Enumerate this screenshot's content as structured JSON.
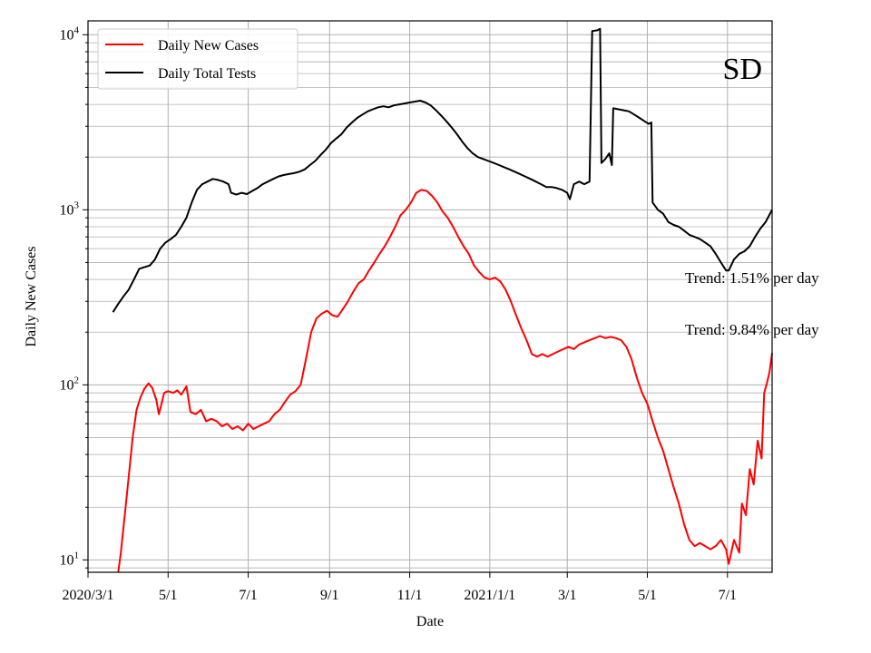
{
  "chart_data": {
    "type": "line",
    "state_label": "SD",
    "xlabel": "Date",
    "ylabel": "Daily New Cases",
    "y_scale": "log",
    "ylim": [
      8.5,
      12000
    ],
    "xlim": [
      "2020-03-01",
      "2021-08-04"
    ],
    "grid": true,
    "legend_position": "top-left",
    "x_ticks": [
      {
        "date": "2020-03-01",
        "label": "2020/3/1"
      },
      {
        "date": "2020-05-01",
        "label": "5/1"
      },
      {
        "date": "2020-07-01",
        "label": "7/1"
      },
      {
        "date": "2020-09-01",
        "label": "9/1"
      },
      {
        "date": "2020-11-01",
        "label": "11/1"
      },
      {
        "date": "2021-01-01",
        "label": "2021/1/1"
      },
      {
        "date": "2021-03-01",
        "label": "3/1"
      },
      {
        "date": "2021-05-01",
        "label": "5/1"
      },
      {
        "date": "2021-07-01",
        "label": "7/1"
      }
    ],
    "y_ticks": [
      {
        "value": 10,
        "base": "10",
        "exp": "1"
      },
      {
        "value": 100,
        "base": "10",
        "exp": "2"
      },
      {
        "value": 1000,
        "base": "10",
        "exp": "3"
      },
      {
        "value": 10000,
        "base": "10",
        "exp": "4"
      }
    ],
    "annotations": [
      "Trend: 1.51% per day",
      "Trend: 9.84% per day"
    ],
    "series": [
      {
        "name": "Daily New Cases",
        "color": "#ff0000",
        "points": [
          [
            "2020-03-24",
            8.5
          ],
          [
            "2020-03-26",
            11
          ],
          [
            "2020-03-29",
            18
          ],
          [
            "2020-04-01",
            30
          ],
          [
            "2020-04-04",
            50
          ],
          [
            "2020-04-07",
            72
          ],
          [
            "2020-04-10",
            85
          ],
          [
            "2020-04-13",
            95
          ],
          [
            "2020-04-16",
            102
          ],
          [
            "2020-04-19",
            96
          ],
          [
            "2020-04-22",
            82
          ],
          [
            "2020-04-24",
            68
          ],
          [
            "2020-04-26",
            78
          ],
          [
            "2020-04-28",
            90
          ],
          [
            "2020-05-01",
            92
          ],
          [
            "2020-05-05",
            90
          ],
          [
            "2020-05-08",
            93
          ],
          [
            "2020-05-11",
            88
          ],
          [
            "2020-05-15",
            98
          ],
          [
            "2020-05-18",
            70
          ],
          [
            "2020-05-22",
            68
          ],
          [
            "2020-05-26",
            72
          ],
          [
            "2020-05-30",
            62
          ],
          [
            "2020-06-03",
            64
          ],
          [
            "2020-06-07",
            62
          ],
          [
            "2020-06-11",
            58
          ],
          [
            "2020-06-15",
            60
          ],
          [
            "2020-06-19",
            56
          ],
          [
            "2020-06-23",
            58
          ],
          [
            "2020-06-27",
            55
          ],
          [
            "2020-07-01",
            60
          ],
          [
            "2020-07-05",
            56
          ],
          [
            "2020-07-09",
            58
          ],
          [
            "2020-07-13",
            60
          ],
          [
            "2020-07-17",
            62
          ],
          [
            "2020-07-21",
            68
          ],
          [
            "2020-07-25",
            72
          ],
          [
            "2020-07-29",
            80
          ],
          [
            "2020-08-02",
            88
          ],
          [
            "2020-08-06",
            92
          ],
          [
            "2020-08-10",
            100
          ],
          [
            "2020-08-14",
            140
          ],
          [
            "2020-08-18",
            200
          ],
          [
            "2020-08-22",
            240
          ],
          [
            "2020-08-26",
            255
          ],
          [
            "2020-08-30",
            265
          ],
          [
            "2020-09-03",
            250
          ],
          [
            "2020-09-07",
            245
          ],
          [
            "2020-09-11",
            270
          ],
          [
            "2020-09-15",
            300
          ],
          [
            "2020-09-19",
            340
          ],
          [
            "2020-09-23",
            380
          ],
          [
            "2020-09-27",
            400
          ],
          [
            "2020-10-01",
            450
          ],
          [
            "2020-10-05",
            500
          ],
          [
            "2020-10-09",
            560
          ],
          [
            "2020-10-13",
            620
          ],
          [
            "2020-10-17",
            700
          ],
          [
            "2020-10-21",
            800
          ],
          [
            "2020-10-25",
            930
          ],
          [
            "2020-10-29",
            1000
          ],
          [
            "2020-11-02",
            1100
          ],
          [
            "2020-11-06",
            1250
          ],
          [
            "2020-11-10",
            1300
          ],
          [
            "2020-11-14",
            1280
          ],
          [
            "2020-11-18",
            1200
          ],
          [
            "2020-11-22",
            1100
          ],
          [
            "2020-11-26",
            980
          ],
          [
            "2020-11-30",
            900
          ],
          [
            "2020-12-04",
            800
          ],
          [
            "2020-12-08",
            700
          ],
          [
            "2020-12-12",
            620
          ],
          [
            "2020-12-16",
            560
          ],
          [
            "2020-12-20",
            480
          ],
          [
            "2020-12-24",
            440
          ],
          [
            "2020-12-28",
            410
          ],
          [
            "2021-01-01",
            400
          ],
          [
            "2021-01-05",
            410
          ],
          [
            "2021-01-09",
            390
          ],
          [
            "2021-01-13",
            350
          ],
          [
            "2021-01-17",
            300
          ],
          [
            "2021-01-21",
            250
          ],
          [
            "2021-01-25",
            210
          ],
          [
            "2021-01-29",
            180
          ],
          [
            "2021-02-02",
            150
          ],
          [
            "2021-02-06",
            145
          ],
          [
            "2021-02-10",
            150
          ],
          [
            "2021-02-14",
            145
          ],
          [
            "2021-02-18",
            150
          ],
          [
            "2021-02-22",
            155
          ],
          [
            "2021-02-26",
            160
          ],
          [
            "2021-03-02",
            165
          ],
          [
            "2021-03-06",
            160
          ],
          [
            "2021-03-10",
            170
          ],
          [
            "2021-03-14",
            175
          ],
          [
            "2021-03-18",
            180
          ],
          [
            "2021-03-22",
            185
          ],
          [
            "2021-03-26",
            190
          ],
          [
            "2021-03-30",
            185
          ],
          [
            "2021-04-03",
            188
          ],
          [
            "2021-04-07",
            185
          ],
          [
            "2021-04-11",
            180
          ],
          [
            "2021-04-15",
            165
          ],
          [
            "2021-04-19",
            140
          ],
          [
            "2021-04-23",
            110
          ],
          [
            "2021-04-27",
            90
          ],
          [
            "2021-05-01",
            78
          ],
          [
            "2021-05-05",
            62
          ],
          [
            "2021-05-09",
            50
          ],
          [
            "2021-05-13",
            42
          ],
          [
            "2021-05-17",
            33
          ],
          [
            "2021-05-21",
            26
          ],
          [
            "2021-05-25",
            21
          ],
          [
            "2021-05-29",
            16
          ],
          [
            "2021-06-02",
            13
          ],
          [
            "2021-06-06",
            12
          ],
          [
            "2021-06-10",
            12.5
          ],
          [
            "2021-06-14",
            12
          ],
          [
            "2021-06-18",
            11.5
          ],
          [
            "2021-06-22",
            12
          ],
          [
            "2021-06-26",
            13
          ],
          [
            "2021-06-30",
            11.5
          ],
          [
            "2021-07-02",
            9.5
          ],
          [
            "2021-07-06",
            13
          ],
          [
            "2021-07-10",
            11
          ],
          [
            "2021-07-12",
            21
          ],
          [
            "2021-07-15",
            18
          ],
          [
            "2021-07-18",
            33
          ],
          [
            "2021-07-21",
            27
          ],
          [
            "2021-07-24",
            48
          ],
          [
            "2021-07-27",
            38
          ],
          [
            "2021-07-29",
            90
          ],
          [
            "2021-07-31",
            102
          ],
          [
            "2021-08-02",
            118
          ],
          [
            "2021-08-04",
            152
          ]
        ]
      },
      {
        "name": "Daily Total Tests",
        "color": "#000000",
        "points": [
          [
            "2020-03-20",
            260
          ],
          [
            "2020-03-24",
            290
          ],
          [
            "2020-03-28",
            320
          ],
          [
            "2020-04-01",
            350
          ],
          [
            "2020-04-05",
            400
          ],
          [
            "2020-04-09",
            460
          ],
          [
            "2020-04-13",
            470
          ],
          [
            "2020-04-17",
            480
          ],
          [
            "2020-04-21",
            520
          ],
          [
            "2020-04-25",
            600
          ],
          [
            "2020-04-29",
            650
          ],
          [
            "2020-05-03",
            680
          ],
          [
            "2020-05-07",
            720
          ],
          [
            "2020-05-11",
            800
          ],
          [
            "2020-05-15",
            900
          ],
          [
            "2020-05-19",
            1100
          ],
          [
            "2020-05-23",
            1300
          ],
          [
            "2020-05-27",
            1400
          ],
          [
            "2020-05-31",
            1450
          ],
          [
            "2020-06-04",
            1500
          ],
          [
            "2020-06-08",
            1480
          ],
          [
            "2020-06-12",
            1450
          ],
          [
            "2020-06-16",
            1400
          ],
          [
            "2020-06-18",
            1250
          ],
          [
            "2020-06-22",
            1220
          ],
          [
            "2020-06-26",
            1250
          ],
          [
            "2020-06-30",
            1230
          ],
          [
            "2020-07-04",
            1280
          ],
          [
            "2020-07-08",
            1330
          ],
          [
            "2020-07-12",
            1400
          ],
          [
            "2020-07-16",
            1450
          ],
          [
            "2020-07-20",
            1500
          ],
          [
            "2020-07-24",
            1550
          ],
          [
            "2020-07-28",
            1580
          ],
          [
            "2020-08-01",
            1600
          ],
          [
            "2020-08-05",
            1620
          ],
          [
            "2020-08-09",
            1650
          ],
          [
            "2020-08-13",
            1700
          ],
          [
            "2020-08-17",
            1800
          ],
          [
            "2020-08-21",
            1900
          ],
          [
            "2020-08-25",
            2050
          ],
          [
            "2020-08-29",
            2200
          ],
          [
            "2020-09-02",
            2400
          ],
          [
            "2020-09-06",
            2550
          ],
          [
            "2020-09-10",
            2700
          ],
          [
            "2020-09-14",
            2950
          ],
          [
            "2020-09-18",
            3150
          ],
          [
            "2020-09-22",
            3350
          ],
          [
            "2020-09-26",
            3500
          ],
          [
            "2020-09-30",
            3650
          ],
          [
            "2020-10-04",
            3750
          ],
          [
            "2020-10-08",
            3850
          ],
          [
            "2020-10-12",
            3900
          ],
          [
            "2020-10-16",
            3850
          ],
          [
            "2020-10-20",
            3950
          ],
          [
            "2020-10-24",
            4000
          ],
          [
            "2020-10-28",
            4050
          ],
          [
            "2020-11-01",
            4100
          ],
          [
            "2020-11-05",
            4150
          ],
          [
            "2020-11-09",
            4200
          ],
          [
            "2020-11-13",
            4100
          ],
          [
            "2020-11-17",
            3950
          ],
          [
            "2020-11-21",
            3700
          ],
          [
            "2020-11-25",
            3450
          ],
          [
            "2020-11-29",
            3200
          ],
          [
            "2020-12-03",
            2950
          ],
          [
            "2020-12-07",
            2700
          ],
          [
            "2020-12-11",
            2450
          ],
          [
            "2020-12-15",
            2250
          ],
          [
            "2020-12-19",
            2100
          ],
          [
            "2020-12-23",
            2000
          ],
          [
            "2020-12-27",
            1950
          ],
          [
            "2020-12-31",
            1900
          ],
          [
            "2021-01-04",
            1850
          ],
          [
            "2021-01-08",
            1800
          ],
          [
            "2021-01-12",
            1750
          ],
          [
            "2021-01-16",
            1700
          ],
          [
            "2021-01-20",
            1650
          ],
          [
            "2021-01-24",
            1600
          ],
          [
            "2021-01-28",
            1550
          ],
          [
            "2021-02-01",
            1500
          ],
          [
            "2021-02-05",
            1450
          ],
          [
            "2021-02-09",
            1400
          ],
          [
            "2021-02-13",
            1350
          ],
          [
            "2021-02-17",
            1350
          ],
          [
            "2021-02-21",
            1330
          ],
          [
            "2021-02-25",
            1300
          ],
          [
            "2021-03-01",
            1250
          ],
          [
            "2021-03-03",
            1150
          ],
          [
            "2021-03-06",
            1400
          ],
          [
            "2021-03-10",
            1450
          ],
          [
            "2021-03-14",
            1400
          ],
          [
            "2021-03-18",
            1450
          ],
          [
            "2021-03-20",
            10500
          ],
          [
            "2021-03-24",
            10600
          ],
          [
            "2021-03-26",
            10800
          ],
          [
            "2021-03-27",
            1850
          ],
          [
            "2021-03-30",
            1950
          ],
          [
            "2021-04-02",
            2100
          ],
          [
            "2021-04-04",
            1800
          ],
          [
            "2021-04-05",
            3800
          ],
          [
            "2021-04-09",
            3750
          ],
          [
            "2021-04-13",
            3700
          ],
          [
            "2021-04-17",
            3650
          ],
          [
            "2021-04-21",
            3500
          ],
          [
            "2021-04-25",
            3350
          ],
          [
            "2021-04-29",
            3200
          ],
          [
            "2021-05-02",
            3100
          ],
          [
            "2021-05-04",
            3150
          ],
          [
            "2021-05-05",
            1100
          ],
          [
            "2021-05-09",
            1000
          ],
          [
            "2021-05-13",
            950
          ],
          [
            "2021-05-17",
            850
          ],
          [
            "2021-05-21",
            820
          ],
          [
            "2021-05-25",
            800
          ],
          [
            "2021-05-29",
            760
          ],
          [
            "2021-06-02",
            720
          ],
          [
            "2021-06-06",
            700
          ],
          [
            "2021-06-10",
            680
          ],
          [
            "2021-06-14",
            650
          ],
          [
            "2021-06-18",
            620
          ],
          [
            "2021-06-22",
            560
          ],
          [
            "2021-06-26",
            500
          ],
          [
            "2021-06-30",
            450
          ],
          [
            "2021-07-02",
            450
          ],
          [
            "2021-07-06",
            520
          ],
          [
            "2021-07-10",
            560
          ],
          [
            "2021-07-14",
            580
          ],
          [
            "2021-07-18",
            620
          ],
          [
            "2021-07-22",
            700
          ],
          [
            "2021-07-26",
            780
          ],
          [
            "2021-07-30",
            850
          ],
          [
            "2021-08-04",
            1000
          ]
        ]
      }
    ]
  }
}
